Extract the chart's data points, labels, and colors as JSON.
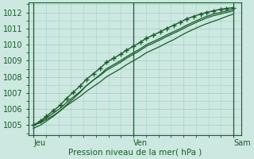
{
  "bg_color": "#cce8e0",
  "grid_color": "#aad4cc",
  "line_color": "#1a5c2a",
  "marker_color": "#1a5c2a",
  "x_labels": [
    "Jeu",
    "Ven",
    "Sam"
  ],
  "xlabel": "Pression niveau de la mer( hPa )",
  "ylim": [
    1004.4,
    1012.6
  ],
  "yticks": [
    1005,
    1006,
    1007,
    1008,
    1009,
    1010,
    1011,
    1012
  ],
  "line1_x": [
    0.0,
    0.07,
    0.13,
    0.2,
    0.27,
    0.33,
    0.4,
    0.47,
    0.53,
    0.6,
    0.67,
    0.73,
    0.8,
    0.87,
    0.93,
    1.0,
    1.07,
    1.13,
    1.2,
    1.27,
    1.33,
    1.4,
    1.47,
    1.53,
    1.6,
    1.67,
    1.73,
    1.8,
    1.87,
    1.93,
    2.0
  ],
  "line1": [
    1005.0,
    1005.15,
    1005.35,
    1005.6,
    1005.9,
    1006.2,
    1006.5,
    1006.8,
    1007.1,
    1007.4,
    1007.7,
    1008.0,
    1008.25,
    1008.5,
    1008.75,
    1009.0,
    1009.25,
    1009.5,
    1009.7,
    1009.9,
    1010.1,
    1010.3,
    1010.55,
    1010.75,
    1010.95,
    1011.15,
    1011.3,
    1011.45,
    1011.6,
    1011.75,
    1011.9
  ],
  "line2_x": [
    0.0,
    0.07,
    0.13,
    0.2,
    0.27,
    0.33,
    0.4,
    0.47,
    0.53,
    0.6,
    0.67,
    0.73,
    0.8,
    0.87,
    0.93,
    1.0,
    1.07,
    1.13,
    1.2,
    1.27,
    1.33,
    1.4,
    1.47,
    1.53,
    1.6,
    1.67,
    1.73,
    1.8,
    1.87,
    1.93,
    2.0
  ],
  "line2": [
    1005.0,
    1005.2,
    1005.45,
    1005.75,
    1006.05,
    1006.4,
    1006.75,
    1007.1,
    1007.45,
    1007.8,
    1008.1,
    1008.4,
    1008.65,
    1008.9,
    1009.15,
    1009.4,
    1009.65,
    1009.9,
    1010.1,
    1010.3,
    1010.5,
    1010.7,
    1010.9,
    1011.1,
    1011.3,
    1011.5,
    1011.65,
    1011.8,
    1011.9,
    1012.0,
    1012.1
  ],
  "line3_x": [
    0.0,
    0.07,
    0.13,
    0.2,
    0.27,
    0.33,
    0.4,
    0.47,
    0.53,
    0.6,
    0.67,
    0.73,
    0.8,
    0.87,
    0.93,
    1.0,
    1.07,
    1.13,
    1.2,
    1.27,
    1.33,
    1.4,
    1.47,
    1.53,
    1.6,
    1.67,
    1.73,
    1.8,
    1.87,
    1.93,
    2.0
  ],
  "line3": [
    1004.8,
    1005.0,
    1005.25,
    1005.55,
    1005.9,
    1006.25,
    1006.65,
    1007.05,
    1007.45,
    1007.8,
    1008.15,
    1008.5,
    1008.75,
    1009.0,
    1009.25,
    1009.5,
    1009.75,
    1010.0,
    1010.2,
    1010.4,
    1010.6,
    1010.8,
    1011.0,
    1011.2,
    1011.4,
    1011.6,
    1011.75,
    1011.9,
    1012.0,
    1012.1,
    1012.2
  ],
  "line4_x": [
    0.0,
    0.07,
    0.13,
    0.2,
    0.27,
    0.33,
    0.4,
    0.47,
    0.53,
    0.6,
    0.67,
    0.73,
    0.8,
    0.87,
    0.93,
    1.0,
    1.07,
    1.13,
    1.2,
    1.27,
    1.33,
    1.4,
    1.47,
    1.53,
    1.6,
    1.67,
    1.73,
    1.8,
    1.87,
    1.93,
    2.0
  ],
  "line4": [
    1005.0,
    1005.25,
    1005.55,
    1005.9,
    1006.25,
    1006.65,
    1007.05,
    1007.45,
    1007.85,
    1008.2,
    1008.55,
    1008.9,
    1009.15,
    1009.4,
    1009.65,
    1009.9,
    1010.15,
    1010.4,
    1010.6,
    1010.8,
    1011.0,
    1011.2,
    1011.4,
    1011.6,
    1011.75,
    1011.9,
    1012.0,
    1012.1,
    1012.2,
    1012.25,
    1012.3
  ],
  "xlim": [
    -0.05,
    2.08
  ],
  "tick_fontsize": 7,
  "label_fontsize": 7.5
}
